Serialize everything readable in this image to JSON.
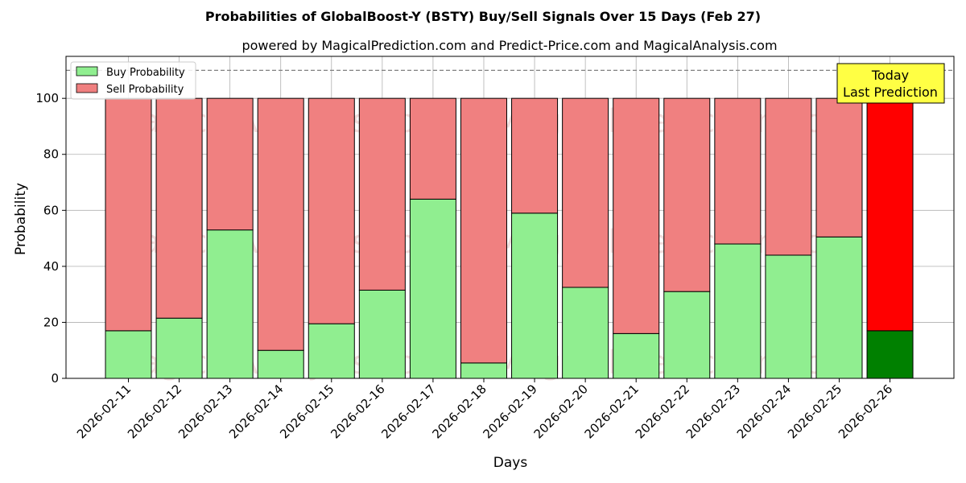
{
  "chart_data": {
    "type": "bar",
    "title": "Probabilities of GlobalBoost-Y (BSTY) Buy/Sell Signals Over 15 Days (Feb 27)",
    "subtitle": "powered by MagicalPrediction.com and Predict-Price.com and MagicalAnalysis.com",
    "xlabel": "Days",
    "ylabel": "Probability",
    "ylim": [
      0,
      115
    ],
    "yticks": [
      0,
      20,
      40,
      60,
      80,
      100
    ],
    "grid": true,
    "stacked": true,
    "legend_placement": "top-left",
    "categories": [
      "2026-02-11",
      "2026-02-12",
      "2026-02-13",
      "2026-02-14",
      "2026-02-15",
      "2026-02-16",
      "2026-02-17",
      "2026-02-18",
      "2026-02-19",
      "2026-02-20",
      "2026-02-21",
      "2026-02-22",
      "2026-02-23",
      "2026-02-24",
      "2026-02-25",
      "2026-02-26"
    ],
    "series": [
      {
        "name": "Buy Probability",
        "color": "#90ee90",
        "values": [
          17,
          21.5,
          53,
          10,
          19.5,
          31.5,
          64,
          5.5,
          59,
          32.5,
          16,
          31,
          48,
          44,
          50.5,
          17
        ]
      },
      {
        "name": "Sell Probability",
        "color": "#f08080",
        "values": [
          83,
          78.5,
          47,
          90,
          80.5,
          68.5,
          36,
          94.5,
          41,
          67.5,
          84,
          69,
          52,
          56,
          49.5,
          83
        ]
      }
    ],
    "highlight": {
      "index": 15,
      "buy_color": "#008000",
      "sell_color": "#ff0000"
    },
    "reference_line": {
      "y": 110,
      "style": "dashed",
      "color": "#808080"
    },
    "annotation": {
      "lines": [
        "Today",
        "Last Prediction"
      ],
      "background": "#ffff44"
    },
    "watermarks": [
      "MagicalAnalysis.com",
      "MagicalPrediction.com"
    ]
  }
}
